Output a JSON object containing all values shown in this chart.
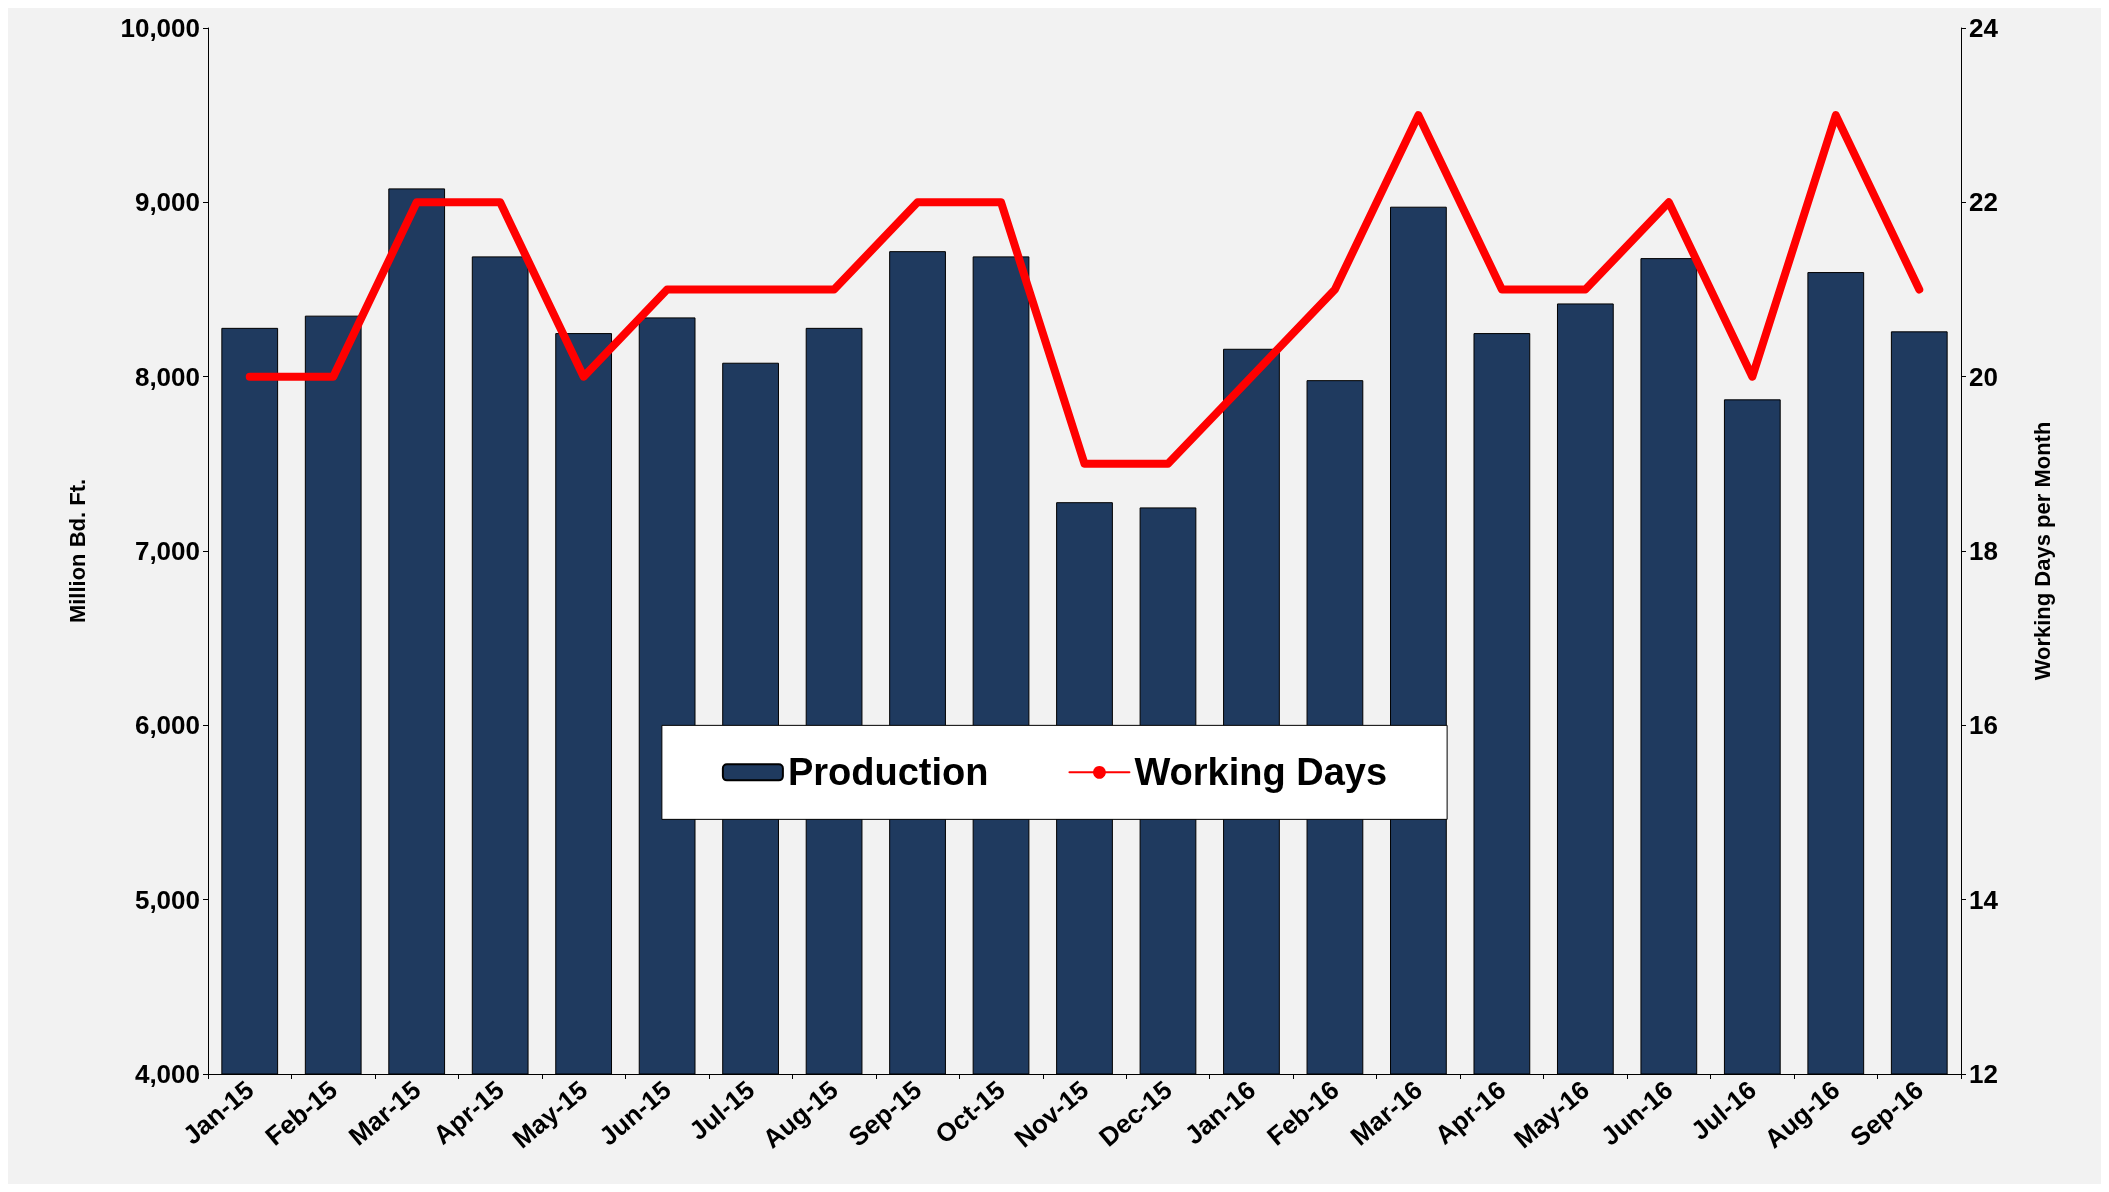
{
  "chart_data": {
    "type": "bar",
    "ylabel": "Million Bd. Ft.",
    "y2label": "Working Days per Month",
    "categories": [
      "Jan-15",
      "Feb-15",
      "Mar-15",
      "Apr-15",
      "May-15",
      "Jun-15",
      "Jul-15",
      "Aug-15",
      "Sep-15",
      "Oct-15",
      "Nov-15",
      "Dec-15",
      "Jan-16",
      "Feb-16",
      "Mar-16",
      "Apr-16",
      "May-16",
      "Jun-16",
      "Jul-16",
      "Aug-16",
      "Sep-16"
    ],
    "series": [
      {
        "name": "Production",
        "color": "#1f3a5f",
        "values": [
          8280,
          8350,
          9080,
          8690,
          8250,
          8340,
          8080,
          8280,
          8720,
          8690,
          7280,
          7250,
          8160,
          7980,
          8975,
          8250,
          8420,
          8680,
          7870,
          8600,
          8260
        ]
      },
      {
        "name": "Working Days",
        "type": "line",
        "axis": "y2",
        "color": "#ff0000",
        "values": [
          20,
          20,
          22,
          22,
          20,
          21,
          21,
          21,
          22,
          22,
          19,
          19,
          20,
          21,
          23,
          21,
          21,
          22,
          20,
          23,
          21
        ]
      }
    ],
    "ylim": [
      4000,
      10000
    ],
    "yticks": [
      {
        "value": 4000,
        "label": "4,000"
      },
      {
        "value": 5000,
        "label": "5,000"
      },
      {
        "value": 6000,
        "label": "6,000"
      },
      {
        "value": 7000,
        "label": "7,000"
      },
      {
        "value": 8000,
        "label": "8,000"
      },
      {
        "value": 9000,
        "label": "9,000"
      },
      {
        "value": 10000,
        "label": "10,000"
      }
    ],
    "y2lim": [
      12,
      24
    ],
    "y2ticks": [
      12,
      14,
      16,
      18,
      20,
      22,
      24
    ],
    "grid": false,
    "legend": "center",
    "marker": "none",
    "line_style": "solid"
  }
}
